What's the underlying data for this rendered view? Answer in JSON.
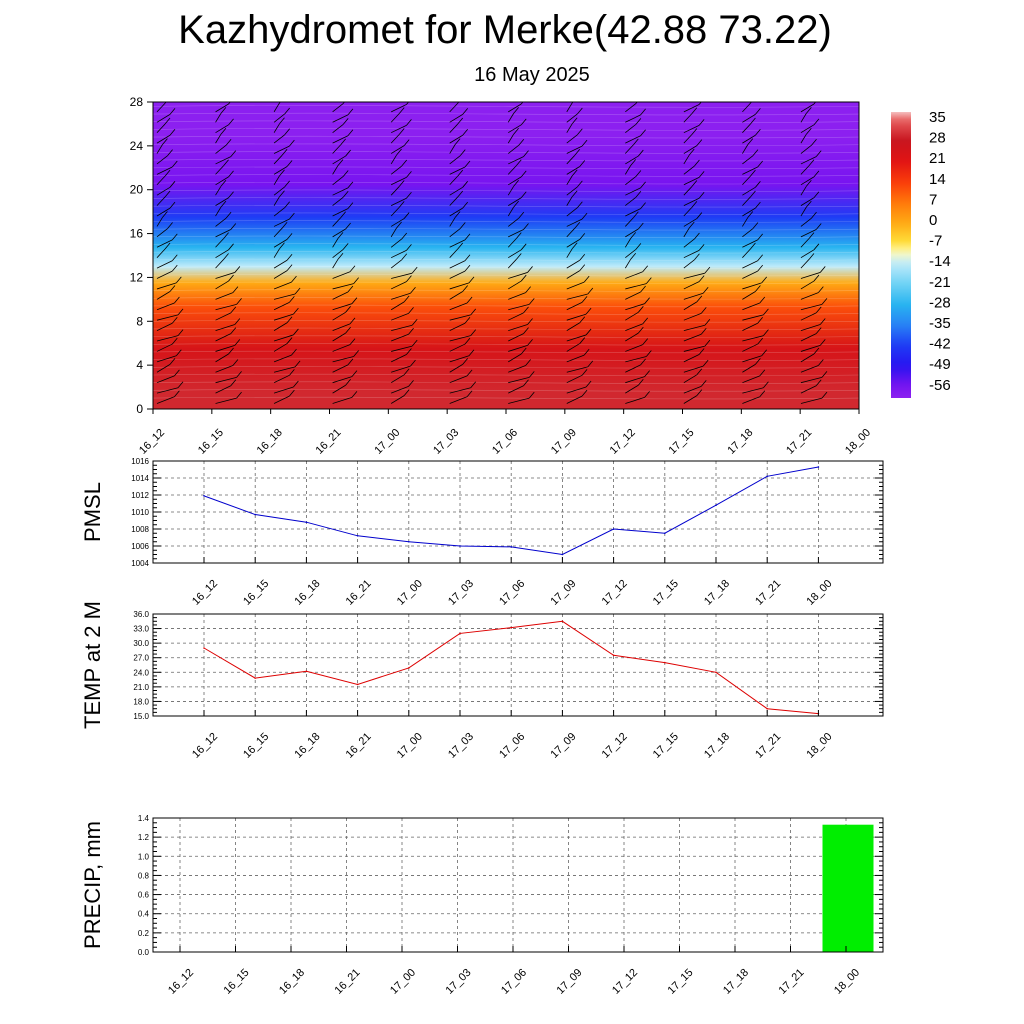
{
  "title": "Kazhydromet for Merke(42.88 73.22)",
  "subtitle": "16 May 2025",
  "time_labels": [
    "16_12",
    "16_15",
    "16_18",
    "16_21",
    "17_00",
    "17_03",
    "17_06",
    "17_09",
    "17_12",
    "17_15",
    "17_18",
    "17_21",
    "18_00"
  ],
  "chart_data": [
    {
      "type": "heatmap",
      "title": "Kazhydromet for Merke(42.88 73.22)",
      "subtitle": "16 May 2025",
      "x": [
        "16_12",
        "16_15",
        "16_18",
        "16_21",
        "17_00",
        "17_03",
        "17_06",
        "17_09",
        "17_12",
        "17_15",
        "17_18",
        "17_21",
        "18_00"
      ],
      "ylim": [
        0,
        28
      ],
      "yticks": [
        0,
        4,
        8,
        12,
        16,
        20,
        24,
        28
      ],
      "colorbar": {
        "labels": [
          "35",
          "28",
          "21",
          "14",
          "7",
          "0",
          "-7",
          "-14",
          "-21",
          "-28",
          "-35",
          "-42",
          "-49",
          "-56"
        ],
        "range": [
          -60,
          38
        ]
      },
      "bands": [
        {
          "from": 0,
          "to": 3,
          "value": 30
        },
        {
          "from": 3,
          "to": 8,
          "value": 24
        },
        {
          "from": 8,
          "to": 10.5,
          "value": 12
        },
        {
          "from": 10.5,
          "to": 12.5,
          "value": 0
        },
        {
          "from": 12.5,
          "to": 13.5,
          "value": -14
        },
        {
          "from": 13.5,
          "to": 16,
          "value": -28
        },
        {
          "from": 16,
          "to": 19,
          "value": -42
        },
        {
          "from": 19,
          "to": 22,
          "value": -56
        },
        {
          "from": 22,
          "to": 28,
          "value": -60
        }
      ],
      "overlay": "wind barbs"
    },
    {
      "type": "line",
      "ylabel": "PMSL",
      "x": [
        "16_12",
        "16_15",
        "16_18",
        "16_21",
        "17_00",
        "17_03",
        "17_06",
        "17_09",
        "17_12",
        "17_15",
        "17_18",
        "17_21",
        "18_00"
      ],
      "values": [
        1011.9,
        1009.7,
        1008.8,
        1007.2,
        1006.5,
        1006.0,
        1005.9,
        1005.0,
        1008.0,
        1007.5,
        1010.8,
        1014.2,
        1015.3
      ],
      "ylim": [
        1004,
        1016
      ],
      "yticks": [
        "1004",
        "1006",
        "1008",
        "1010",
        "1012",
        "1014",
        "1016"
      ],
      "color": "#0000cc",
      "grid": true
    },
    {
      "type": "line",
      "ylabel": "TEMP at 2 M",
      "x": [
        "16_12",
        "16_15",
        "16_18",
        "16_21",
        "17_00",
        "17_03",
        "17_06",
        "17_09",
        "17_12",
        "17_15",
        "17_18",
        "17_21",
        "18_00"
      ],
      "values": [
        29.0,
        22.8,
        24.2,
        21.5,
        24.9,
        32.0,
        33.2,
        34.5,
        27.5,
        26.0,
        24.0,
        16.5,
        15.5
      ],
      "ylim": [
        15,
        36
      ],
      "yticks": [
        "15.0",
        "18.0",
        "21.0",
        "24.0",
        "27.0",
        "30.0",
        "33.0",
        "36.0"
      ],
      "color": "#dd0000",
      "grid": true
    },
    {
      "type": "bar",
      "ylabel": "PRECIP, mm",
      "categories": [
        "16_12",
        "16_15",
        "16_18",
        "16_21",
        "17_00",
        "17_03",
        "17_06",
        "17_09",
        "17_12",
        "17_15",
        "17_18",
        "17_21",
        "18_00"
      ],
      "values": [
        0,
        0,
        0,
        0,
        0,
        0,
        0,
        0,
        0,
        0,
        0,
        0,
        1.33
      ],
      "ylim": [
        0,
        1.4
      ],
      "yticks": [
        "0.0",
        "0.2",
        "0.4",
        "0.6",
        "0.8",
        "1.0",
        "1.2",
        "1.4"
      ],
      "color": "#00ee00",
      "grid": true
    }
  ]
}
